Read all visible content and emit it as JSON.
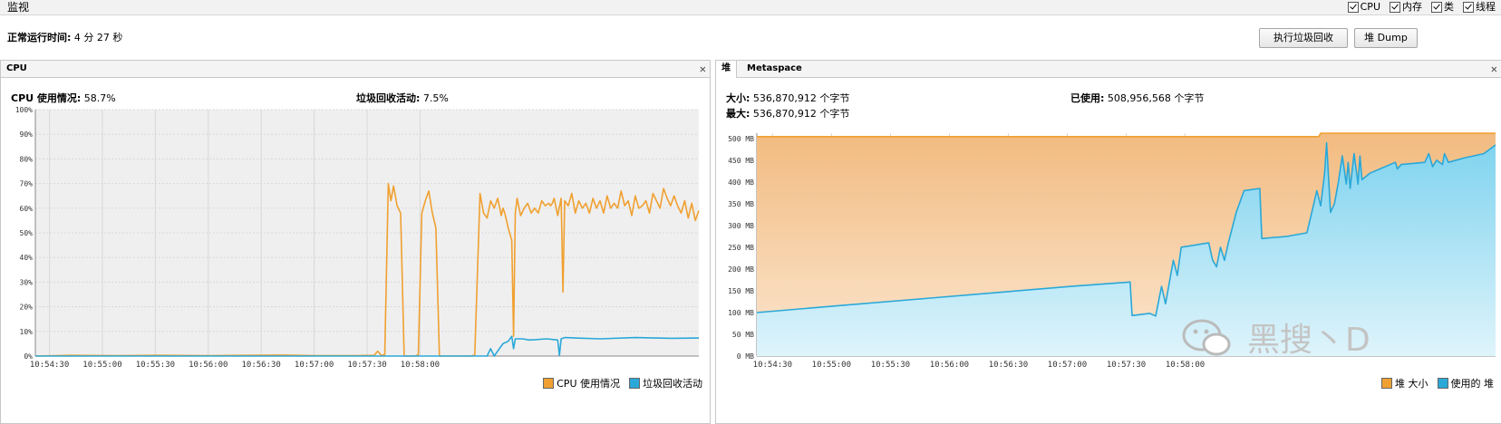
{
  "header": {
    "title": "监视",
    "checkboxes": [
      {
        "label": "CPU",
        "checked": true
      },
      {
        "label": "内存",
        "checked": true
      },
      {
        "label": "类",
        "checked": true
      },
      {
        "label": "线程",
        "checked": true
      }
    ],
    "uptime_label": "正常运行时间:",
    "uptime_value": "4 分 27 秒",
    "gc_button": "执行垃圾回收",
    "dump_button": "堆 Dump"
  },
  "cpu_panel": {
    "tab": "CPU",
    "cpu_usage_label": "CPU 使用情况:",
    "cpu_usage_value": "58.7%",
    "gc_activity_label": "垃圾回收活动:",
    "gc_activity_value": "7.5%",
    "legend": [
      {
        "label": "CPU 使用情况",
        "color": "#f0a030"
      },
      {
        "label": "垃圾回收活动",
        "color": "#2aa8d8"
      }
    ]
  },
  "heap_panel": {
    "tabs": [
      "堆",
      "Metaspace"
    ],
    "size_label": "大小:",
    "size_value": "536,870,912 个字节",
    "max_label": "最大:",
    "max_value": "536,870,912 个字节",
    "used_label": "已使用:",
    "used_value": "508,956,568 个字节",
    "legend": [
      {
        "label": "堆 大小",
        "color": "#f0a030"
      },
      {
        "label": "使用的 堆",
        "color": "#2aa8d8"
      }
    ]
  },
  "watermark": {
    "text": "黑搜丶D"
  },
  "chart_data": [
    {
      "type": "line",
      "title": "CPU",
      "x": [
        "10:54:30",
        "10:55:00",
        "10:55:30",
        "10:56:00",
        "10:56:30",
        "10:57:00",
        "10:57:30",
        "10:58:00"
      ],
      "yticks": [
        "0%",
        "10%",
        "20%",
        "30%",
        "40%",
        "50%",
        "60%",
        "70%",
        "80%",
        "90%",
        "100%"
      ],
      "ylim": [
        0,
        100
      ],
      "xlim_seconds": [
        0,
        240
      ],
      "series": [
        {
          "name": "CPU 使用情况",
          "color": "#f0a030",
          "points": [
            [
              0,
              0
            ],
            [
              20,
              0.3
            ],
            [
              45,
              0.2
            ],
            [
              70,
              0.3
            ],
            [
              100,
              0.2
            ],
            [
              140,
              0.4
            ],
            [
              160,
              0.2
            ],
            [
              180,
              0.2
            ],
            [
              192,
              0.3
            ],
            [
              194,
              2
            ],
            [
              196,
              0.3
            ],
            [
              198,
              0.5
            ],
            [
              200,
              70
            ],
            [
              201.5,
              63
            ],
            [
              203,
              69
            ],
            [
              205,
              61
            ],
            [
              207,
              58
            ],
            [
              209,
              0
            ],
            [
              215,
              0
            ],
            [
              217,
              0.5
            ],
            [
              219,
              58
            ],
            [
              221,
              63
            ],
            [
              223,
              67
            ],
            [
              225,
              58
            ],
            [
              227,
              52
            ],
            [
              229,
              0
            ],
            [
              240,
              0
            ],
            [
              247,
              0
            ],
            [
              249,
              0.5
            ],
            [
              252,
              66
            ],
            [
              254,
              58
            ],
            [
              256,
              56
            ],
            [
              258,
              63
            ],
            [
              260,
              60
            ],
            [
              262,
              64
            ],
            [
              264,
              57
            ],
            [
              265,
              60
            ],
            [
              266,
              58
            ],
            [
              268,
              52
            ],
            [
              270,
              47
            ],
            [
              271,
              8
            ],
            [
              272,
              58
            ],
            [
              273,
              64
            ],
            [
              275,
              57
            ],
            [
              277,
              60
            ],
            [
              279,
              62
            ],
            [
              281,
              58
            ],
            [
              283,
              60
            ],
            [
              285,
              58
            ],
            [
              287,
              63
            ],
            [
              289,
              61
            ],
            [
              291,
              62
            ],
            [
              292,
              61
            ],
            [
              293,
              62
            ],
            [
              294,
              64
            ],
            [
              296,
              57
            ],
            [
              298,
              64
            ],
            [
              299,
              26
            ],
            [
              300,
              63
            ],
            [
              302,
              61
            ],
            [
              304,
              66
            ],
            [
              306,
              58
            ],
            [
              308,
              63
            ],
            [
              310,
              60
            ],
            [
              312,
              62
            ],
            [
              314,
              58
            ],
            [
              316,
              64
            ],
            [
              318,
              60
            ],
            [
              320,
              63
            ],
            [
              322,
              58
            ],
            [
              324,
              65
            ],
            [
              326,
              60
            ],
            [
              328,
              62
            ],
            [
              330,
              60
            ],
            [
              332,
              67
            ],
            [
              334,
              61
            ],
            [
              336,
              63
            ],
            [
              338,
              57
            ],
            [
              340,
              65
            ],
            [
              342,
              60
            ],
            [
              344,
              61
            ],
            [
              346,
              63
            ],
            [
              348,
              58
            ],
            [
              350,
              66
            ],
            [
              352,
              63
            ],
            [
              354,
              60
            ],
            [
              356,
              68
            ],
            [
              358,
              64
            ],
            [
              360,
              61
            ],
            [
              362,
              65
            ],
            [
              364,
              61
            ],
            [
              366,
              58
            ],
            [
              368,
              63
            ],
            [
              370,
              56
            ],
            [
              372,
              62
            ],
            [
              374,
              55
            ],
            [
              376,
              59
            ]
          ]
        },
        {
          "name": "垃圾回收活动",
          "color": "#2aa8d8",
          "points": [
            [
              0,
              0
            ],
            [
              255,
              0
            ],
            [
              256,
              0
            ],
            [
              258,
              3
            ],
            [
              260,
              0
            ],
            [
              263,
              3
            ],
            [
              265,
              5
            ],
            [
              268,
              6
            ],
            [
              270,
              8
            ],
            [
              271,
              3
            ],
            [
              272,
              7
            ],
            [
              276,
              7
            ],
            [
              280,
              6.5
            ],
            [
              290,
              7
            ],
            [
              296,
              6.5
            ],
            [
              297,
              0.3
            ],
            [
              298,
              7
            ],
            [
              300,
              7.5
            ],
            [
              320,
              7
            ],
            [
              340,
              7.5
            ],
            [
              360,
              7.2
            ],
            [
              376,
              7.3
            ]
          ]
        }
      ]
    },
    {
      "type": "area",
      "title": "堆",
      "x": [
        "10:54:30",
        "10:55:00",
        "10:55:30",
        "10:56:00",
        "10:56:30",
        "10:57:00",
        "10:57:30",
        "10:58:00"
      ],
      "yticks": [
        "0 MB",
        "50 MB",
        "100 MB",
        "150 MB",
        "200 MB",
        "250 MB",
        "300 MB",
        "350 MB",
        "400 MB",
        "450 MB",
        "500 MB"
      ],
      "ylim": [
        0,
        512
      ],
      "series": [
        {
          "name": "堆 大小",
          "color": "#f0a030",
          "points": [
            [
              0,
              504
            ],
            [
              286,
              504
            ],
            [
              287,
              512
            ],
            [
              376,
              512
            ]
          ]
        },
        {
          "name": "使用的 堆",
          "color": "#2aa8d8",
          "points": [
            [
              0,
              100
            ],
            [
              40,
              115
            ],
            [
              80,
              130
            ],
            [
              120,
              145
            ],
            [
              160,
              160
            ],
            [
              190,
              170
            ],
            [
              191,
              93
            ],
            [
              200,
              98
            ],
            [
              203,
              92
            ],
            [
              206,
              160
            ],
            [
              208,
              120
            ],
            [
              212,
              220
            ],
            [
              214,
              185
            ],
            [
              216,
              250
            ],
            [
              230,
              260
            ],
            [
              232,
              220
            ],
            [
              234,
              205
            ],
            [
              236,
              250
            ],
            [
              238,
              220
            ],
            [
              240,
              260
            ],
            [
              244,
              330
            ],
            [
              248,
              380
            ],
            [
              256,
              385
            ],
            [
              257,
              270
            ],
            [
              270,
              275
            ],
            [
              280,
              283
            ],
            [
              283,
              340
            ],
            [
              285,
              380
            ],
            [
              287,
              345
            ],
            [
              289,
              420
            ],
            [
              290,
              490
            ],
            [
              292,
              330
            ],
            [
              294,
              350
            ],
            [
              296,
              400
            ],
            [
              298,
              460
            ],
            [
              300,
              395
            ],
            [
              301,
              445
            ],
            [
              302,
              385
            ],
            [
              304,
              465
            ],
            [
              306,
              395
            ],
            [
              307,
              460
            ],
            [
              308,
              405
            ],
            [
              312,
              420
            ],
            [
              325,
              445
            ],
            [
              326,
              430
            ],
            [
              328,
              440
            ],
            [
              340,
              445
            ],
            [
              342,
              465
            ],
            [
              344,
              435
            ],
            [
              346,
              450
            ],
            [
              349,
              440
            ],
            [
              350,
              465
            ],
            [
              352,
              445
            ],
            [
              360,
              455
            ],
            [
              370,
              465
            ],
            [
              376,
              485
            ]
          ]
        }
      ]
    }
  ]
}
